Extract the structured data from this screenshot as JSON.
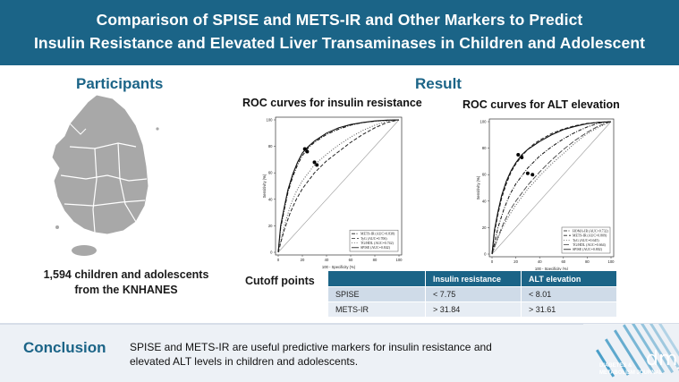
{
  "header": {
    "title_line1": "Comparison of SPISE and METS-IR and Other Markers to Predict",
    "title_line2": "Insulin Resistance and Elevated Liver Transaminases in Children and Adolescent"
  },
  "participants": {
    "heading": "Participants",
    "line1": "1,594 children and adolescents",
    "line2": "from the KNHANES"
  },
  "result": {
    "heading": "Result"
  },
  "roc_ir_title": "ROC curves for insulin resistance",
  "roc_alt_title": "ROC curves for ALT elevation",
  "cutoff": {
    "label": "Cutoff points",
    "headers": [
      "",
      "Insulin resistance",
      "ALT elevation"
    ],
    "rows": [
      [
        "SPISE",
        "< 7.75",
        "< 8.01"
      ],
      [
        "METS-IR",
        "> 31.84",
        "> 31.61"
      ]
    ]
  },
  "conclusion": {
    "heading": "Conclusion",
    "line1": "SPISE and METS-IR are useful predictive markers for insulin resistance and",
    "line2": "elevated ALT levels in children and adolescents."
  },
  "logo": {
    "line1": "DIABETES &",
    "line2": "METABOLISM JOURNAL",
    "mark": "dmj"
  },
  "colors": {
    "brand": "#1b6487",
    "header_text": "#ffffff",
    "table_row1": "#cfdbe8",
    "table_row2": "#e7edf4"
  },
  "chart_data": [
    {
      "type": "line",
      "title": "ROC curves for insulin resistance",
      "xlabel": "100 - Specificity (%)",
      "ylabel": "Sensitivity (%)",
      "xlim": [
        0,
        100
      ],
      "ylim": [
        0,
        100
      ],
      "ticks": [
        0,
        20,
        40,
        60,
        80,
        100
      ],
      "legend_position": "bottom-right",
      "series": [
        {
          "name": "METS-IR (AUC=0.838)",
          "style": "dashdot",
          "dots": [
            [
              24,
              76
            ],
            [
              32,
              66
            ]
          ],
          "x": [
            0,
            2,
            5,
            8,
            12,
            16,
            20,
            25,
            30,
            35,
            40,
            50,
            60,
            70,
            80,
            90,
            100
          ],
          "y": [
            0,
            18,
            32,
            45,
            57,
            66,
            73,
            79,
            83,
            86,
            89,
            93,
            96,
            98,
            99,
            99.7,
            100
          ]
        },
        {
          "name": "TyG (AUC=0.706)",
          "style": "dashed",
          "x": [
            0,
            5,
            10,
            15,
            20,
            30,
            40,
            50,
            60,
            70,
            80,
            90,
            100
          ],
          "y": [
            0,
            17,
            30,
            40,
            48,
            60,
            69,
            76,
            83,
            89,
            94,
            98,
            100
          ]
        },
        {
          "name": "TG/HDL (AUC=0.742)",
          "style": "dotted",
          "x": [
            0,
            5,
            10,
            15,
            20,
            30,
            40,
            50,
            60,
            70,
            80,
            90,
            100
          ],
          "y": [
            0,
            20,
            35,
            46,
            54,
            66,
            74,
            81,
            87,
            92,
            96,
            99,
            100
          ]
        },
        {
          "name": "SPISE (AUC=0.842)",
          "style": "solid",
          "dots": [
            [
              22,
              78
            ],
            [
              30,
              68
            ]
          ],
          "x": [
            0,
            2,
            5,
            8,
            12,
            16,
            20,
            25,
            30,
            35,
            40,
            50,
            60,
            70,
            80,
            90,
            100
          ],
          "y": [
            0,
            20,
            34,
            47,
            59,
            68,
            75,
            80,
            84,
            87,
            90,
            94,
            96.5,
            98,
            99.2,
            99.8,
            100
          ]
        }
      ]
    },
    {
      "type": "line",
      "title": "ROC curves for ALT elevation",
      "xlabel": "100 - Specificity (%)",
      "ylabel": "Sensitivity (%)",
      "xlim": [
        0,
        100
      ],
      "ylim": [
        0,
        100
      ],
      "ticks": [
        0,
        20,
        40,
        60,
        80,
        100
      ],
      "legend_position": "bottom-right",
      "series": [
        {
          "name": "HOMA-IR (AUC=0.732)",
          "style": "dashdot",
          "x": [
            0,
            5,
            10,
            15,
            20,
            30,
            40,
            50,
            60,
            70,
            80,
            90,
            100
          ],
          "y": [
            0,
            20,
            34,
            45,
            53,
            65,
            74,
            81,
            87,
            92,
            96,
            99,
            100
          ]
        },
        {
          "name": "METS-IR (AUC=0.809)",
          "style": "dashed",
          "dots": [
            [
              25,
              73
            ],
            [
              30,
              61
            ]
          ],
          "x": [
            0,
            2,
            5,
            8,
            12,
            16,
            20,
            25,
            30,
            35,
            40,
            50,
            60,
            70,
            80,
            90,
            100
          ],
          "y": [
            0,
            16,
            30,
            42,
            53,
            62,
            68,
            74,
            79,
            83,
            86,
            91,
            94.5,
            97,
            98.7,
            99.6,
            100
          ]
        },
        {
          "name": "TyG (AUC=0.645)",
          "style": "dotted",
          "x": [
            0,
            5,
            10,
            15,
            20,
            30,
            40,
            50,
            60,
            70,
            80,
            90,
            100
          ],
          "y": [
            0,
            12,
            22,
            30,
            37,
            49,
            59,
            68,
            76,
            84,
            91,
            96,
            100
          ]
        },
        {
          "name": "TG/HDL (AUC=0.664)",
          "style": "longdash",
          "x": [
            0,
            5,
            10,
            15,
            20,
            30,
            40,
            50,
            60,
            70,
            80,
            90,
            100
          ],
          "y": [
            0,
            13,
            24,
            33,
            40,
            52,
            62,
            71,
            79,
            86,
            92,
            97,
            100
          ]
        },
        {
          "name": "SPISE (AUC=0.802)",
          "style": "solid",
          "dots": [
            [
              22,
              75
            ],
            [
              34,
              60
            ]
          ],
          "x": [
            0,
            2,
            5,
            8,
            12,
            16,
            20,
            25,
            30,
            35,
            40,
            50,
            60,
            70,
            80,
            90,
            100
          ],
          "y": [
            0,
            18,
            32,
            44,
            55,
            63,
            69,
            75,
            79,
            82,
            85,
            90,
            94,
            96.5,
            98.5,
            99.5,
            100
          ]
        }
      ]
    }
  ]
}
